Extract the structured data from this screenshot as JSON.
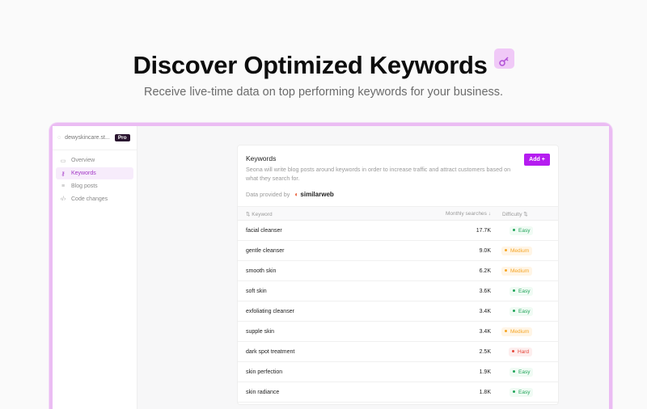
{
  "hero": {
    "title": "Discover Optimized Keywords",
    "title_icon": "key-icon",
    "subtitle": "Receive live-time data on top performing keywords for your business."
  },
  "sidebar": {
    "workspace": "dewyskincare.st...",
    "plan_badge": "Pro",
    "items": [
      {
        "label": "Overview",
        "icon": "calendar-icon"
      },
      {
        "label": "Keywords",
        "icon": "key-icon",
        "active": true
      },
      {
        "label": "Blog posts",
        "icon": "lines-icon"
      },
      {
        "label": "Code changes",
        "icon": "code-icon"
      }
    ]
  },
  "card": {
    "title": "Keywords",
    "description": "Seona will write blog posts around keywords in order to increase traffic and attract customers based on what they search for.",
    "provided_by": "Data provided by",
    "provider": "similarweb",
    "add_label": "Add +",
    "columns": {
      "keyword": "Keyword",
      "searches": "Monthly searches",
      "difficulty": "Difficulty"
    },
    "rows": [
      {
        "keyword": "facial cleanser",
        "searches": "17.7K",
        "difficulty": "Easy"
      },
      {
        "keyword": "gentle cleanser",
        "searches": "9.0K",
        "difficulty": "Medium"
      },
      {
        "keyword": "smooth skin",
        "searches": "6.2K",
        "difficulty": "Medium"
      },
      {
        "keyword": "soft skin",
        "searches": "3.6K",
        "difficulty": "Easy"
      },
      {
        "keyword": "exfoliating cleanser",
        "searches": "3.4K",
        "difficulty": "Easy"
      },
      {
        "keyword": "supple skin",
        "searches": "3.4K",
        "difficulty": "Medium"
      },
      {
        "keyword": "dark spot treatment",
        "searches": "2.5K",
        "difficulty": "Hard"
      },
      {
        "keyword": "skin perfection",
        "searches": "1.9K",
        "difficulty": "Easy"
      },
      {
        "keyword": "skin radiance",
        "searches": "1.8K",
        "difficulty": "Easy"
      }
    ]
  },
  "colors": {
    "accent": "#b51cf0",
    "easy": "#22a55b",
    "medium": "#f5a524",
    "hard": "#e5483b"
  }
}
